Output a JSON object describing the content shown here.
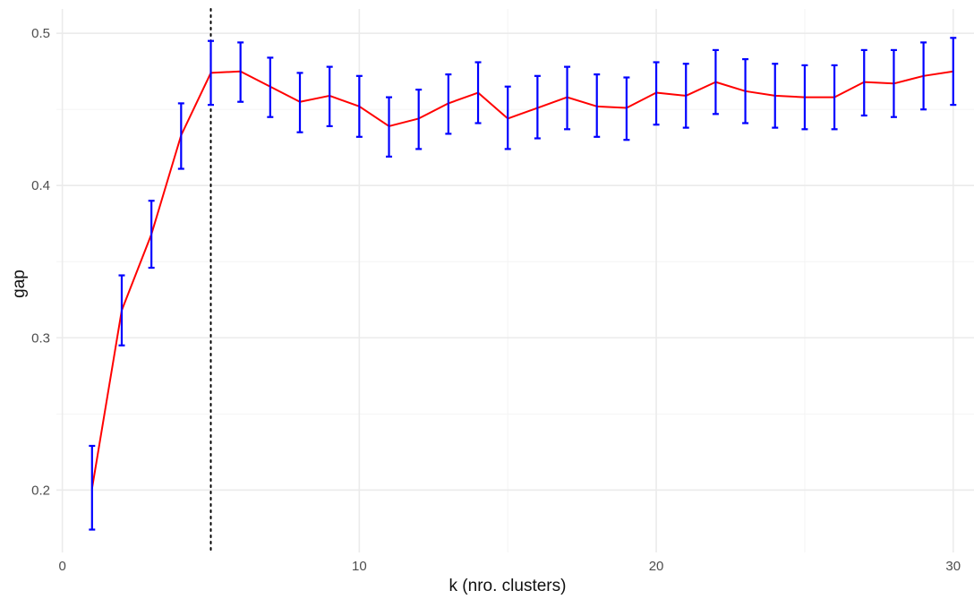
{
  "chart_data": {
    "type": "line",
    "xlabel": "k (nro. clusters)",
    "ylabel": "gap",
    "xlim": [
      -0.2,
      30.7
    ],
    "ylim": [
      0.159,
      0.516
    ],
    "x_ticks": [
      0,
      10,
      20,
      30
    ],
    "x_minor_ticks": [
      5,
      15,
      25
    ],
    "y_ticks": [
      0.2,
      0.3,
      0.4,
      0.5
    ],
    "y_minor_ticks": [
      0.25,
      0.35,
      0.45
    ],
    "x_tick_labels": [
      "0",
      "10",
      "20",
      "30"
    ],
    "y_tick_labels": [
      "0.2",
      "0.3",
      "0.4",
      "0.5"
    ],
    "grid": true,
    "vline": {
      "x": 5,
      "style": "dotted"
    },
    "line_color": "#ff0000",
    "errorbar_color": "#0000ff",
    "series": [
      {
        "x": [
          1,
          2,
          3,
          4,
          5,
          6,
          7,
          8,
          9,
          10,
          11,
          12,
          13,
          14,
          15,
          16,
          17,
          18,
          19,
          20,
          21,
          22,
          23,
          24,
          25,
          26,
          27,
          28,
          29,
          30
        ],
        "y": [
          0.201,
          0.318,
          0.368,
          0.433,
          0.474,
          0.475,
          0.465,
          0.455,
          0.459,
          0.452,
          0.439,
          0.444,
          0.454,
          0.461,
          0.444,
          0.451,
          0.458,
          0.452,
          0.451,
          0.461,
          0.459,
          0.468,
          0.462,
          0.459,
          0.458,
          0.458,
          0.468,
          0.467,
          0.472,
          0.475
        ],
        "ymin": [
          0.174,
          0.295,
          0.346,
          0.411,
          0.453,
          0.455,
          0.445,
          0.435,
          0.439,
          0.432,
          0.419,
          0.424,
          0.434,
          0.441,
          0.424,
          0.431,
          0.437,
          0.432,
          0.43,
          0.44,
          0.438,
          0.447,
          0.441,
          0.438,
          0.437,
          0.437,
          0.446,
          0.445,
          0.45,
          0.453
        ],
        "ymax": [
          0.229,
          0.341,
          0.39,
          0.454,
          0.495,
          0.494,
          0.484,
          0.474,
          0.478,
          0.472,
          0.458,
          0.463,
          0.473,
          0.481,
          0.465,
          0.472,
          0.478,
          0.473,
          0.471,
          0.481,
          0.48,
          0.489,
          0.483,
          0.48,
          0.479,
          0.479,
          0.489,
          0.489,
          0.494,
          0.497
        ]
      }
    ]
  }
}
